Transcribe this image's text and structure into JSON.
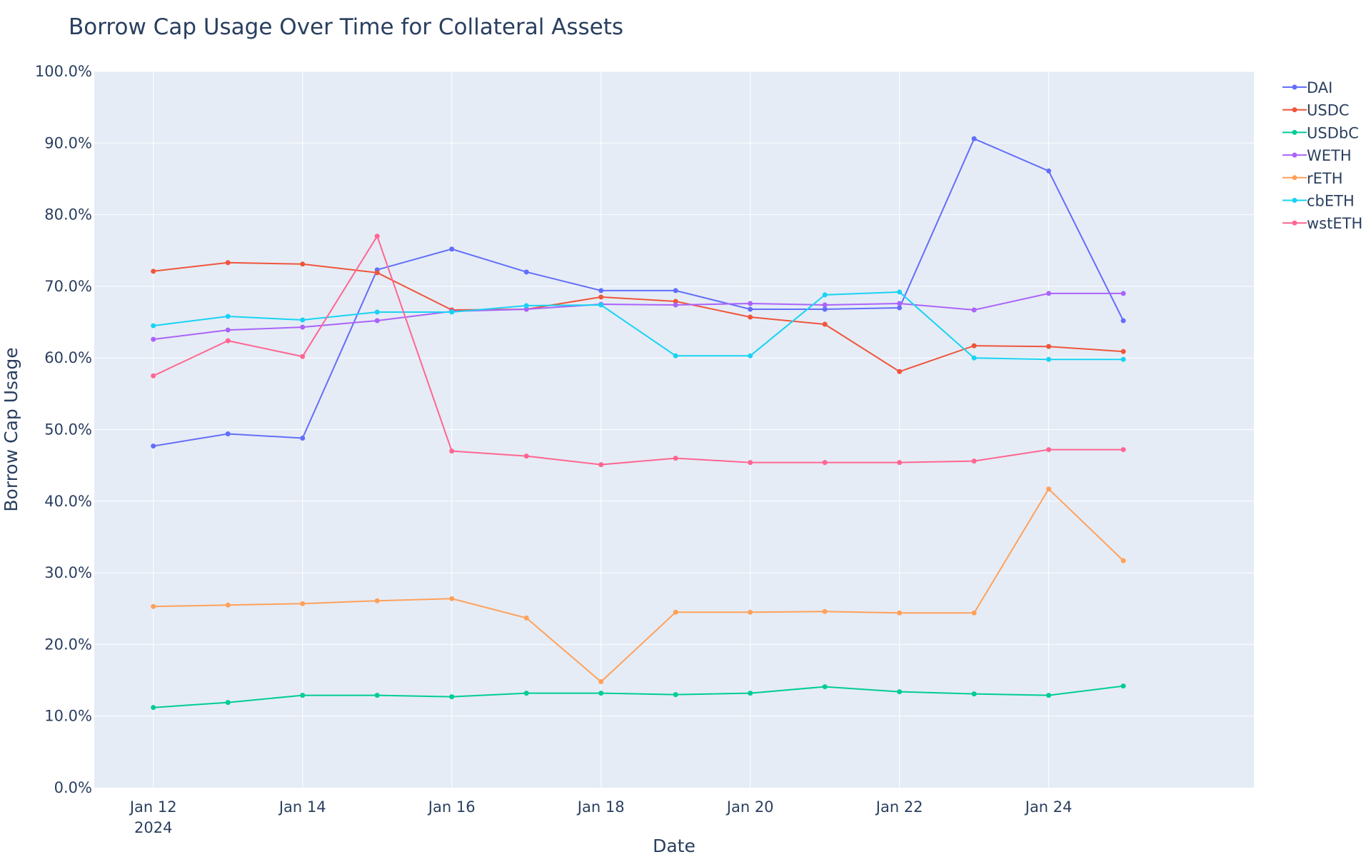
{
  "chart_data": {
    "type": "line",
    "title": "Borrow Cap Usage Over Time for Collateral Assets",
    "xlabel": "Date",
    "ylabel": "Borrow Cap Usage",
    "x": [
      "2024-01-12",
      "2024-01-13",
      "2024-01-14",
      "2024-01-15",
      "2024-01-16",
      "2024-01-17",
      "2024-01-18",
      "2024-01-19",
      "2024-01-20",
      "2024-01-21",
      "2024-01-22",
      "2024-01-23",
      "2024-01-24",
      "2024-01-25"
    ],
    "x_ticks": [
      {
        "date": "2024-01-12",
        "label": "Jan 12",
        "sublabel": "2024"
      },
      {
        "date": "2024-01-14",
        "label": "Jan 14"
      },
      {
        "date": "2024-01-16",
        "label": "Jan 16"
      },
      {
        "date": "2024-01-18",
        "label": "Jan 18"
      },
      {
        "date": "2024-01-20",
        "label": "Jan 20"
      },
      {
        "date": "2024-01-22",
        "label": "Jan 22"
      },
      {
        "date": "2024-01-24",
        "label": "Jan 24"
      }
    ],
    "xlim": [
      "2024-01-11T05:00",
      "2024-01-26T18:00"
    ],
    "ylim": [
      0,
      100
    ],
    "y_unit": "%",
    "y_ticks": [
      "0.0%",
      "10.0%",
      "20.0%",
      "30.0%",
      "40.0%",
      "50.0%",
      "60.0%",
      "70.0%",
      "80.0%",
      "90.0%",
      "100.0%"
    ],
    "grid": true,
    "legend_position": "top-right",
    "background": "#e5ecf6",
    "series": [
      {
        "name": "DAI",
        "color": "#636efa",
        "values": [
          47.7,
          49.4,
          48.8,
          72.3,
          75.2,
          72.0,
          69.4,
          69.4,
          66.8,
          66.8,
          67.0,
          90.6,
          86.1,
          65.2
        ]
      },
      {
        "name": "USDC",
        "color": "#ef553b",
        "values": [
          72.1,
          73.3,
          73.1,
          71.9,
          66.7,
          66.8,
          68.5,
          67.9,
          65.7,
          64.7,
          58.1,
          61.7,
          61.6,
          60.9
        ]
      },
      {
        "name": "USDbC",
        "color": "#00cc96",
        "values": [
          11.2,
          11.9,
          12.9,
          12.9,
          12.7,
          13.2,
          13.2,
          13.0,
          13.2,
          14.1,
          13.4,
          13.1,
          12.9,
          14.2
        ]
      },
      {
        "name": "WETH",
        "color": "#ab63fa",
        "values": [
          62.6,
          63.9,
          64.3,
          65.2,
          66.5,
          66.8,
          67.5,
          67.4,
          67.6,
          67.4,
          67.6,
          66.7,
          69.0,
          69.0
        ]
      },
      {
        "name": "rETH",
        "color": "#ffa15a",
        "values": [
          25.3,
          25.5,
          25.7,
          26.1,
          26.4,
          23.7,
          14.8,
          24.5,
          24.5,
          24.6,
          24.4,
          24.4,
          41.7,
          31.7
        ]
      },
      {
        "name": "cbETH",
        "color": "#19d3f3",
        "values": [
          64.5,
          65.8,
          65.3,
          66.4,
          66.4,
          67.3,
          67.4,
          60.3,
          60.3,
          68.8,
          69.2,
          60.0,
          59.8,
          59.8
        ]
      },
      {
        "name": "wstETH",
        "color": "#ff6692",
        "values": [
          57.5,
          62.4,
          60.2,
          77.0,
          47.0,
          46.3,
          45.1,
          46.0,
          45.4,
          45.4,
          45.4,
          45.6,
          47.2,
          47.2
        ]
      }
    ]
  }
}
